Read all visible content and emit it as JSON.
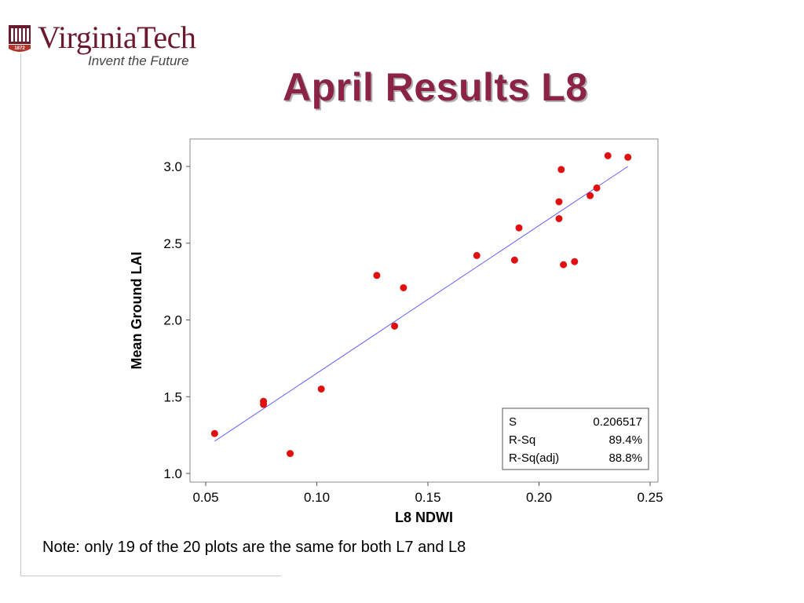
{
  "logo": {
    "wordmark": "VirginiaTech",
    "tagline": "Invent the Future",
    "seal_text": "1872"
  },
  "slide": {
    "title": "April Results L8",
    "note": "Note: only 19 of the 20 plots are the same for both L7 and L8"
  },
  "colors": {
    "title": "#8b2346",
    "brand": "#6b1a2e",
    "points": "#e01010",
    "fit_line": "#6060ff"
  },
  "chart_data": {
    "type": "scatter",
    "xlabel": "L8 NDWI",
    "ylabel": "Mean Ground LAI",
    "xlim": [
      0.05,
      0.25
    ],
    "ylim": [
      1.0,
      3.1
    ],
    "xticks": [
      0.05,
      0.1,
      0.15,
      0.2,
      0.25
    ],
    "xtick_labels": [
      "0.05",
      "0.10",
      "0.15",
      "0.20",
      "0.25"
    ],
    "yticks": [
      1.0,
      1.5,
      2.0,
      2.5,
      3.0
    ],
    "ytick_labels": [
      "1.0",
      "1.5",
      "2.0",
      "2.5",
      "3.0"
    ],
    "grid": false,
    "points": [
      {
        "x": 0.054,
        "y": 1.26
      },
      {
        "x": 0.076,
        "y": 1.47
      },
      {
        "x": 0.076,
        "y": 1.45
      },
      {
        "x": 0.088,
        "y": 1.13
      },
      {
        "x": 0.102,
        "y": 1.55
      },
      {
        "x": 0.127,
        "y": 2.29
      },
      {
        "x": 0.135,
        "y": 1.96
      },
      {
        "x": 0.139,
        "y": 2.21
      },
      {
        "x": 0.172,
        "y": 2.42
      },
      {
        "x": 0.189,
        "y": 2.39
      },
      {
        "x": 0.191,
        "y": 2.6
      },
      {
        "x": 0.209,
        "y": 2.77
      },
      {
        "x": 0.209,
        "y": 2.66
      },
      {
        "x": 0.21,
        "y": 2.98
      },
      {
        "x": 0.211,
        "y": 2.36
      },
      {
        "x": 0.216,
        "y": 2.38
      },
      {
        "x": 0.223,
        "y": 2.81
      },
      {
        "x": 0.226,
        "y": 2.86
      },
      {
        "x": 0.231,
        "y": 3.07
      },
      {
        "x": 0.24,
        "y": 3.06
      }
    ],
    "fit_line": {
      "x": [
        0.054,
        0.24
      ],
      "y": [
        1.21,
        3.0
      ]
    },
    "stats": [
      {
        "label": "S",
        "value": "0.206517"
      },
      {
        "label": "R-Sq",
        "value": "89.4%"
      },
      {
        "label": "R-Sq(adj)",
        "value": "88.8%"
      }
    ],
    "stats_box_placement": "bottom-right"
  }
}
